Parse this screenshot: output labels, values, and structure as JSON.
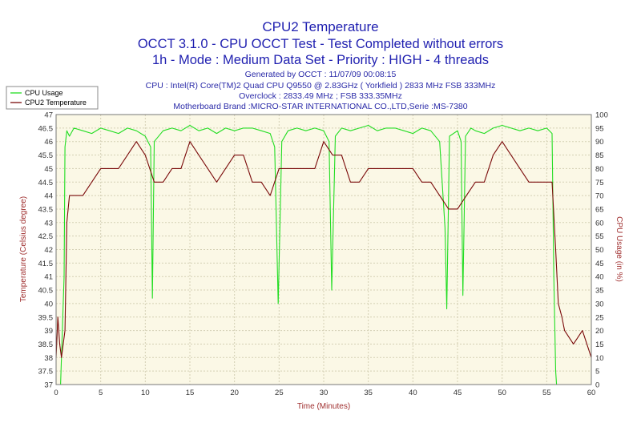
{
  "colors": {
    "background": "#ffffff",
    "plot_background": "#fbf8e6",
    "grid": "#d4cfb4",
    "title": "#1f1fb0",
    "info_text": "#2a2aa8",
    "temperature": "#7a0a0a",
    "cpu_usage": "#22dd22",
    "axis_label": "#a03030"
  },
  "chart_data": {
    "type": "line",
    "title": "CPU2 Temperature",
    "subtitle_lines": [
      "OCCT 3.1.0 - CPU OCCT Test - Test Completed without errors",
      "1h - Mode : Medium Data Set - Priority : HIGH - 4 threads"
    ],
    "info_lines": [
      "Generated by OCCT : 11/07/09 00:08:15",
      "CPU : Intel(R) Core(TM)2 Quad CPU Q9550 @ 2.83GHz ( Yorkfield ) 2833 MHz FSB 333MHz",
      "Overclock : 2833.49 MHz ; FSB 333.35MHz",
      "Motherboard Brand :MICRO-STAR INTERNATIONAL CO.,LTD,Serie :MS-7380"
    ],
    "xlabel": "Time (Minutes)",
    "ylabel_left": "Temperature (Celsius degree)",
    "ylabel_right": "CPU Usage (in %)",
    "xlim": [
      0,
      60
    ],
    "ylim_left": [
      37,
      47
    ],
    "ylim_right": [
      0,
      100
    ],
    "x_ticks": [
      "0",
      "5",
      "10",
      "15",
      "20",
      "25",
      "30",
      "35",
      "40",
      "45",
      "50",
      "55",
      "60"
    ],
    "y_left_ticks": [
      "37",
      "37.5",
      "38",
      "38.5",
      "39",
      "39.5",
      "40",
      "40.5",
      "41",
      "41.5",
      "42",
      "42.5",
      "43",
      "43.5",
      "44",
      "44.5",
      "45",
      "45.5",
      "46",
      "46.5",
      "47"
    ],
    "y_right_ticks": [
      "0",
      "5",
      "10",
      "15",
      "20",
      "25",
      "30",
      "35",
      "40",
      "45",
      "50",
      "55",
      "60",
      "65",
      "70",
      "75",
      "80",
      "85",
      "90",
      "95",
      "100"
    ],
    "grid": true,
    "legend_position": "top-left",
    "series": [
      {
        "name": "CPU Usage",
        "axis": "right",
        "x": [
          0,
          0.5,
          0.9,
          1.0,
          1.2,
          1.5,
          2,
          3,
          4,
          5,
          6,
          7,
          8,
          9,
          10,
          10.6,
          10.8,
          11,
          12,
          13,
          14,
          15,
          16,
          17,
          18,
          19,
          20,
          21,
          22,
          23,
          24,
          24.5,
          24.9,
          25.3,
          26,
          27,
          28,
          29,
          30,
          30.6,
          30.9,
          31.3,
          32,
          33,
          34,
          35,
          36,
          37,
          38,
          39,
          40,
          41,
          42,
          43,
          43.6,
          43.8,
          44.1,
          45,
          45.4,
          45.6,
          45.9,
          46.5,
          47,
          48,
          49,
          50,
          51,
          52,
          53,
          54,
          55,
          55.6,
          55.8,
          56.0,
          56.1,
          56.3,
          57,
          60
        ],
        "values": [
          0,
          0,
          40,
          88,
          94,
          92,
          95,
          94,
          93,
          95,
          94,
          93,
          95,
          94,
          92,
          88,
          32,
          90,
          94,
          95,
          94,
          96,
          94,
          95,
          93,
          95,
          94,
          95,
          95,
          94,
          93,
          88,
          30,
          90,
          94,
          95,
          94,
          95,
          94,
          90,
          35,
          92,
          95,
          94,
          95,
          96,
          94,
          95,
          95,
          94,
          93,
          95,
          94,
          90,
          58,
          28,
          92,
          94,
          90,
          33,
          92,
          95,
          94,
          93,
          95,
          96,
          95,
          94,
          95,
          94,
          95,
          93,
          40,
          5,
          0,
          0,
          0,
          0
        ]
      },
      {
        "name": "CPU2 Temperature",
        "axis": "left",
        "x": [
          0,
          0.2,
          0.4,
          0.6,
          0.8,
          1.0,
          1.2,
          1.5,
          2,
          3,
          4,
          5,
          6,
          7,
          8,
          9,
          10,
          11,
          12,
          13,
          14,
          15,
          16,
          17,
          18,
          19,
          20,
          21,
          22,
          23,
          24,
          25,
          26,
          27,
          28,
          29,
          30,
          31,
          32,
          33,
          34,
          35,
          36,
          37,
          38,
          39,
          40,
          41,
          42,
          43,
          44,
          45,
          46,
          47,
          48,
          49,
          50,
          51,
          52,
          53,
          54,
          55,
          55.6,
          56.0,
          56.3,
          56.7,
          57,
          58,
          59,
          60
        ],
        "values": [
          38,
          39.5,
          38.5,
          38,
          38.5,
          39,
          43,
          44,
          44,
          44,
          44.5,
          45,
          45,
          45,
          45.5,
          46,
          45.5,
          44.5,
          44.5,
          45,
          45,
          46,
          45.5,
          45,
          44.5,
          45,
          45.5,
          45.5,
          44.5,
          44.5,
          44,
          45,
          45,
          45,
          45,
          45,
          46,
          45.5,
          45.5,
          44.5,
          44.5,
          45,
          45,
          45,
          45,
          45,
          45,
          44.5,
          44.5,
          44,
          43.5,
          43.5,
          44,
          44.5,
          44.5,
          45.5,
          46,
          45.5,
          45,
          44.5,
          44.5,
          44.5,
          44.5,
          42,
          40,
          39.5,
          39,
          38.5,
          39,
          38
        ]
      }
    ]
  }
}
